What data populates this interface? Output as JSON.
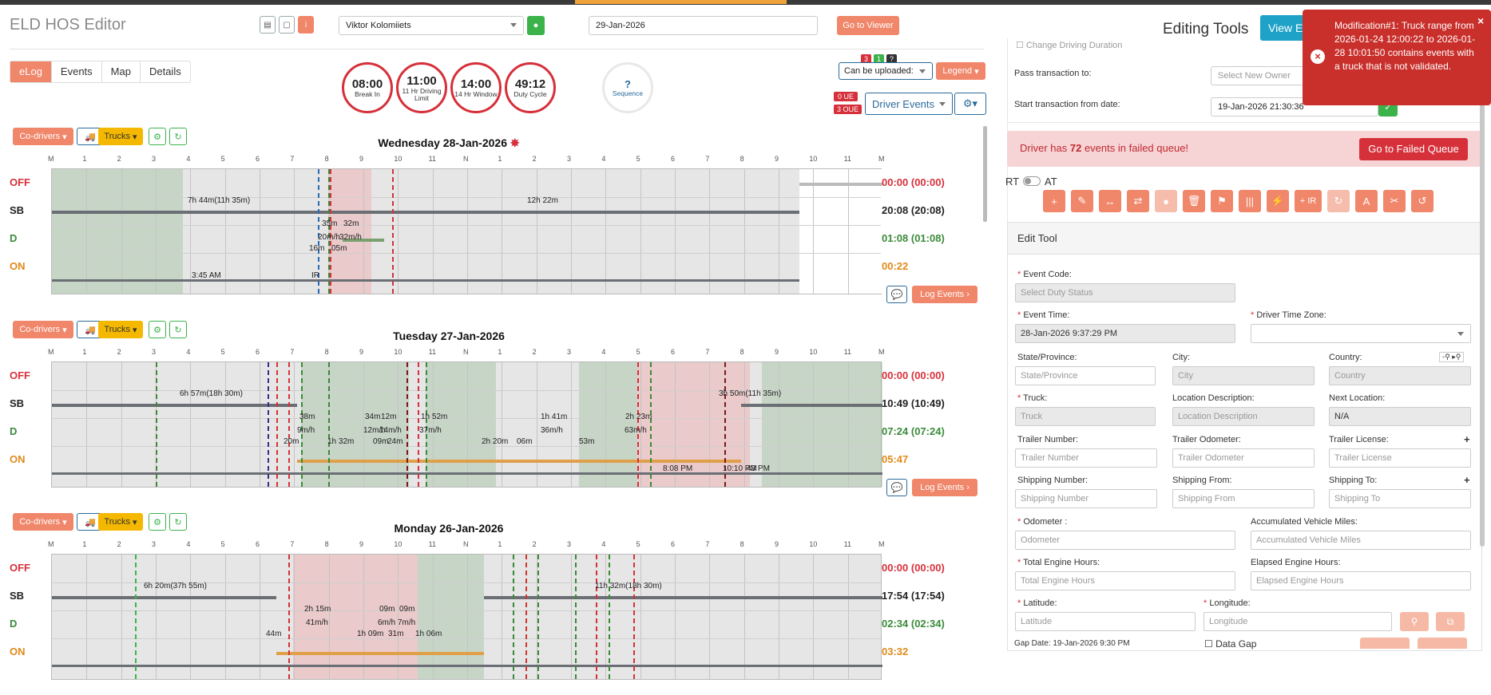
{
  "header": {
    "app_title": "ELD HOS Editor",
    "driver": "Viktor Kolomiiets",
    "date": "29-Jan-2026",
    "go_to_viewer": "Go to Viewer",
    "editing_tools": "Editing Tools",
    "view_btn": "View E"
  },
  "tabs": [
    {
      "label": "eLog",
      "active": true
    },
    {
      "label": "Events"
    },
    {
      "label": "Map"
    },
    {
      "label": "Details"
    }
  ],
  "clocks": [
    {
      "value": "08:00",
      "label": "Break In"
    },
    {
      "value": "11:00",
      "label": "11 Hr Driving Limit"
    },
    {
      "value": "14:00",
      "label": "14 Hr Window"
    },
    {
      "value": "49:12",
      "label": "Duty Cycle"
    }
  ],
  "sequence": {
    "value": "?",
    "label": "Sequence"
  },
  "upload": {
    "select": "Can be uploaded:",
    "legend": "Legend",
    "badge1": "3",
    "badge2": "1",
    "badge3": "?",
    "ue": "0 UE",
    "oue": "3 OUE",
    "driver_events": "Driver Events"
  },
  "day_buttons": {
    "codrivers": "Co-drivers",
    "trucks": "Trucks",
    "log_events": "Log Events"
  },
  "hours": [
    "M",
    "1",
    "2",
    "3",
    "4",
    "5",
    "6",
    "7",
    "8",
    "9",
    "10",
    "11",
    "N",
    "1",
    "2",
    "3",
    "4",
    "5",
    "6",
    "7",
    "8",
    "9",
    "10",
    "11",
    "M"
  ],
  "status_labels": [
    "OFF",
    "SB",
    "D",
    "ON"
  ],
  "colors": {
    "off": "#d6303a",
    "sb": "#222",
    "d": "#3a8a3a",
    "on": "#e08a1a",
    "accent": "#f0866a"
  },
  "days": [
    {
      "title": "Wednesday 28-Jan-2026",
      "totals": [
        "00:00 (00:00)",
        "20:08 (20:08)",
        "01:08 (01:08)",
        "00:22"
      ],
      "labels": [
        {
          "t": "7h 44m(11h 35m)",
          "x": 170,
          "y": 34
        },
        {
          "t": "12h 22m",
          "x": 595,
          "y": 34
        },
        {
          "t": "35m",
          "x": 338,
          "y": 63
        },
        {
          "t": "32m",
          "x": 365,
          "y": 63
        },
        {
          "t": "20m/h",
          "x": 333,
          "y": 80
        },
        {
          "t": "32m/h",
          "x": 360,
          "y": 80
        },
        {
          "t": "16m",
          "x": 322,
          "y": 94
        },
        {
          "t": "05m",
          "x": 350,
          "y": 94
        },
        {
          "t": "3:45 AM",
          "x": 175,
          "y": 128
        },
        {
          "t": "IR",
          "x": 325,
          "y": 128
        }
      ]
    },
    {
      "title": "Tuesday 27-Jan-2026",
      "totals": [
        "00:00 (00:00)",
        "10:49 (10:49)",
        "07:24 (07:24)",
        "05:47"
      ],
      "labels": [
        {
          "t": "6h 57m(18h 30m)",
          "x": 160,
          "y": 34
        },
        {
          "t": "3h 50m(11h 35m)",
          "x": 835,
          "y": 34
        },
        {
          "t": "38m",
          "x": 310,
          "y": 63
        },
        {
          "t": "34m",
          "x": 392,
          "y": 63
        },
        {
          "t": "12m",
          "x": 412,
          "y": 63
        },
        {
          "t": "1h 52m",
          "x": 462,
          "y": 63
        },
        {
          "t": "1h 41m",
          "x": 612,
          "y": 63
        },
        {
          "t": "2h 23m",
          "x": 718,
          "y": 63
        },
        {
          "t": "9m/h",
          "x": 307,
          "y": 80
        },
        {
          "t": "12m/h",
          "x": 390,
          "y": 80
        },
        {
          "t": "14m/h",
          "x": 410,
          "y": 80
        },
        {
          "t": "37m/h",
          "x": 460,
          "y": 80
        },
        {
          "t": "36m/h",
          "x": 612,
          "y": 80
        },
        {
          "t": "63m/h",
          "x": 717,
          "y": 80
        },
        {
          "t": "20m",
          "x": 290,
          "y": 94
        },
        {
          "t": "1h 32m",
          "x": 345,
          "y": 94
        },
        {
          "t": "09m",
          "x": 402,
          "y": 94
        },
        {
          "t": "24m",
          "x": 420,
          "y": 94
        },
        {
          "t": "2h 20m",
          "x": 538,
          "y": 94
        },
        {
          "t": "06m",
          "x": 582,
          "y": 94
        },
        {
          "t": "53m",
          "x": 660,
          "y": 94
        },
        {
          "t": "8:08 PM",
          "x": 765,
          "y": 128
        },
        {
          "t": "10:10 PM",
          "x": 840,
          "y": 128
        },
        {
          "t": "43 PM",
          "x": 870,
          "y": 128
        }
      ]
    },
    {
      "title": "Monday 26-Jan-2026",
      "totals": [
        "00:00 (00:00)",
        "17:54 (17:54)",
        "02:34 (02:34)",
        "03:32"
      ],
      "labels": [
        {
          "t": "6h 20m(37h 55m)",
          "x": 115,
          "y": 34
        },
        {
          "t": "11h 32m(18h 30m)",
          "x": 680,
          "y": 34
        },
        {
          "t": "2h 15m",
          "x": 316,
          "y": 63
        },
        {
          "t": "09m",
          "x": 410,
          "y": 63
        },
        {
          "t": "09m",
          "x": 435,
          "y": 63
        },
        {
          "t": "41m/h",
          "x": 318,
          "y": 80
        },
        {
          "t": "6m/h",
          "x": 408,
          "y": 80
        },
        {
          "t": "7m/h",
          "x": 433,
          "y": 80
        },
        {
          "t": "44m",
          "x": 268,
          "y": 94
        },
        {
          "t": "1h 09m",
          "x": 382,
          "y": 94
        },
        {
          "t": "31m",
          "x": 421,
          "y": 94
        },
        {
          "t": "1h 06m",
          "x": 455,
          "y": 94
        }
      ]
    }
  ],
  "right_panel": {
    "change_driving": "Change Driving Duration",
    "pass_label": "Pass transaction to:",
    "pass_placeholder": "Select New Owner",
    "start_label": "Start transaction from date:",
    "start_value": "19-Jan-2026 21:30:36",
    "failed_msg_pre": "Driver has ",
    "failed_count": "72",
    "failed_msg_post": " events in failed queue!",
    "go_failed": "Go to Failed Queue",
    "rt": "RT",
    "at": "AT",
    "edit_tool": "Edit Tool",
    "event_code": "Event Code:",
    "event_code_ph": "Select Duty Status",
    "event_time": "Event Time:",
    "event_time_val": "28-Jan-2026 9:37:29 PM",
    "driver_tz": "Driver Time Zone:",
    "state": "State/Province:",
    "state_ph": "State/Province",
    "city": "City:",
    "city_ph": "City",
    "country": "Country:",
    "country_ph": "Country",
    "truck": "Truck:",
    "truck_ph": "Truck",
    "loc_desc": "Location Description:",
    "loc_desc_ph": "Location Description",
    "next_loc": "Next Location:",
    "next_loc_val": "N/A",
    "trailer_num": "Trailer Number:",
    "trailer_num_ph": "Trailer Number",
    "trailer_odo": "Trailer Odometer:",
    "trailer_odo_ph": "Trailer Odometer",
    "trailer_lic": "Trailer License:",
    "trailer_lic_ph": "Trailer License",
    "ship_num": "Shipping Number:",
    "ship_num_ph": "Shipping Number",
    "ship_from": "Shipping From:",
    "ship_from_ph": "Shipping From",
    "ship_to": "Shipping To:",
    "ship_to_ph": "Shipping To",
    "odometer": "Odometer :",
    "odometer_ph": "Odometer",
    "acc_miles": "Accumulated Vehicle Miles:",
    "acc_miles_ph": "Accumulated Vehicle Miles",
    "eng_hours": "Total Engine Hours:",
    "eng_hours_ph": "Total Engine Hours",
    "elapsed": "Elapsed Engine Hours:",
    "elapsed_ph": "Elapsed Engine Hours",
    "lat": "Latitude:",
    "lat_ph": "Latitude",
    "lon": "Longitude:",
    "lon_ph": "Longitude",
    "gap_date": "Gap Date: 19-Jan-2026 9:30 PM",
    "data_gap": "Data Gap",
    "plus_ir": "+ IR"
  },
  "toast": {
    "text": "Modification#1: Truck range from 2026-01-24 12:00:22 to 2026-01-28 10:01:50 contains events with a truck that is not validated.",
    "close": "×"
  }
}
